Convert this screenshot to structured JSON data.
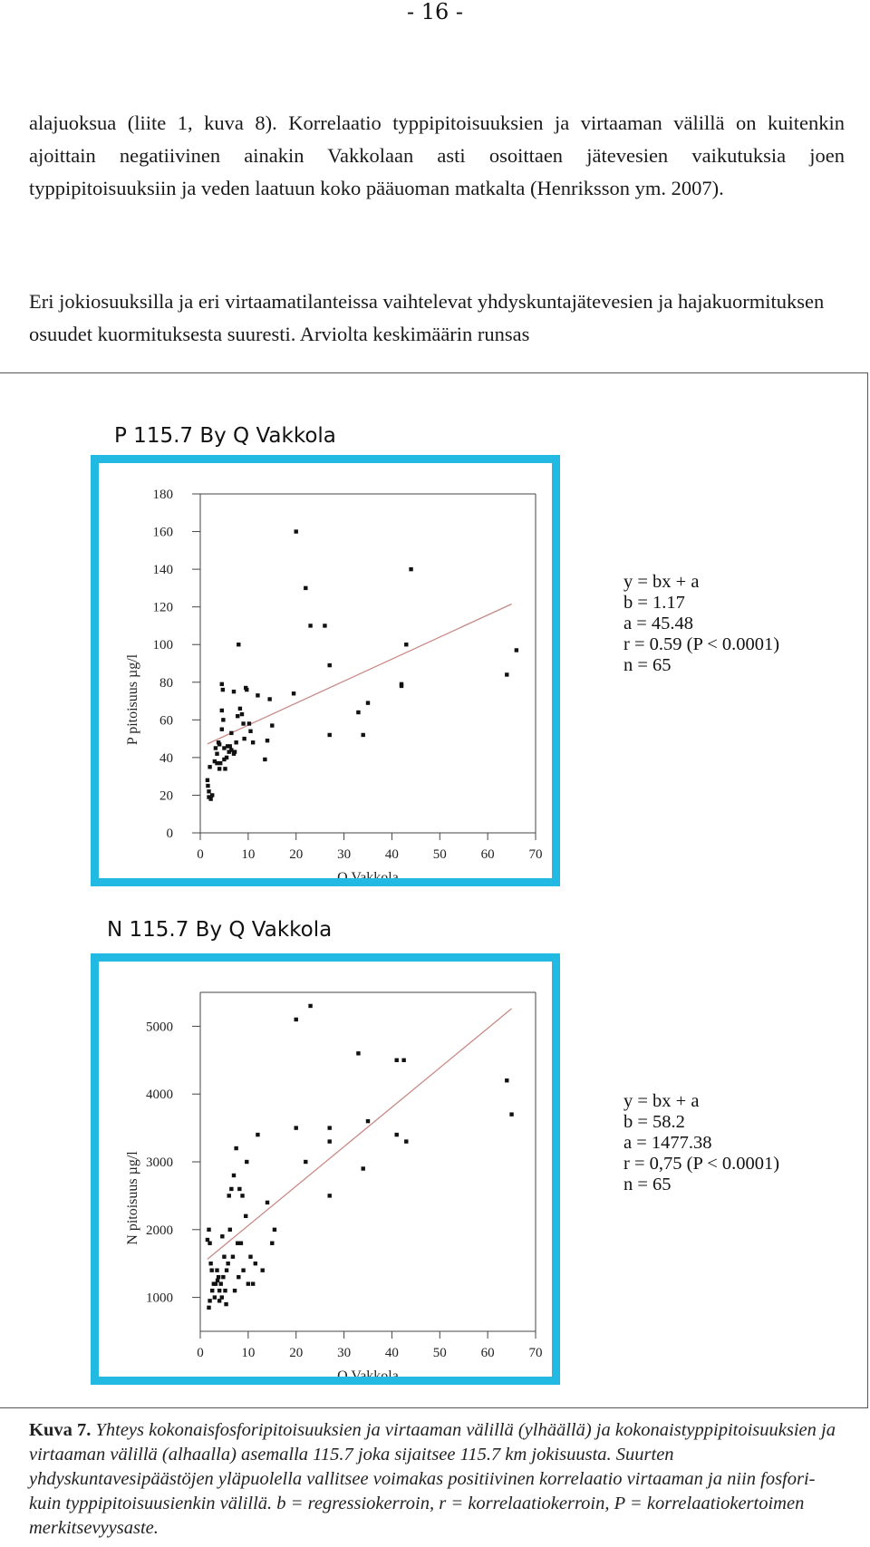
{
  "page": {
    "page_number": "- 16 -",
    "paragraphs": [
      "alajuoksua (liite 1, kuva 8). Korrelaatio typpipitoisuuksien ja virtaaman välillä on kuitenkin ajoittain negatiivinen ainakin Vakkolaan asti osoittaen jätevesien vaikutuksia joen typpipitoisuuksiin ja veden laatuun koko pääuoman matkalta (Henriksson ym. 2007).",
      "Eri jokiosuuksilla ja eri virtaamatilanteissa vaihtelevat yhdyskuntajätevesien ja hajakuormituksen osuudet kuormituksesta suuresti. Arviolta keskimäärin runsas"
    ],
    "caption_label": "Kuva 7.",
    "caption_text": "Yhteys kokonaisfosforipitoisuuksien ja virtaaman välillä (ylhäällä) ja kokonaistyppipitoisuuksien ja virtaaman välillä (alhaalla) asemalla 115.7 joka sijaitsee 115.7 km jokisuusta. Suurten yhdyskuntavesipäästöjen yläpuolella vallitsee voimakas positiivinen korrelaatio virtaaman ja niin fosfori- kuin typpipitoisuusienkin välillä. b = regressiokerroin, r = korrelaatiokerroin, P = korrelaatiokertoimen merkitsevyysaste."
  },
  "colors": {
    "frame": "#22b9e3",
    "regression_line": "#c98a86",
    "points": "#111111"
  },
  "chart_data": [
    {
      "type": "scatter",
      "title": "P 115.7 By Q Vakkola",
      "xlabel": "Q Vakkola",
      "ylabel": "P pitoisuus µg/l",
      "xlim": [
        0,
        70
      ],
      "ylim": [
        0,
        180
      ],
      "xticks": [
        0,
        10,
        20,
        30,
        40,
        50,
        60,
        70
      ],
      "yticks": [
        0,
        20,
        40,
        60,
        80,
        100,
        120,
        140,
        160,
        180
      ],
      "regression": {
        "b": 1.17,
        "a": 45.48,
        "x_range": [
          1.5,
          65
        ]
      },
      "stats": [
        "y = bx + a",
        "b = 1.17",
        "a = 45.48",
        "r = 0.59 (P < 0.0001)",
        "n = 65"
      ],
      "points": [
        [
          1.5,
          28
        ],
        [
          1.6,
          25
        ],
        [
          1.8,
          22
        ],
        [
          1.8,
          19
        ],
        [
          2,
          35
        ],
        [
          2.2,
          18
        ],
        [
          2.5,
          20
        ],
        [
          3,
          38
        ],
        [
          3.2,
          45
        ],
        [
          3.5,
          42
        ],
        [
          3.5,
          37
        ],
        [
          4,
          34
        ],
        [
          4,
          47
        ],
        [
          4.2,
          37
        ],
        [
          4.5,
          55
        ],
        [
          4.8,
          60
        ],
        [
          4.5,
          65
        ],
        [
          5,
          45
        ],
        [
          5,
          39
        ],
        [
          5.2,
          34
        ],
        [
          5.5,
          40
        ],
        [
          5.7,
          46
        ],
        [
          6,
          43
        ],
        [
          6.2,
          46
        ],
        [
          6.5,
          44
        ],
        [
          6.5,
          53
        ],
        [
          7,
          42
        ],
        [
          7.5,
          48
        ],
        [
          7.8,
          62
        ],
        [
          8,
          100
        ],
        [
          8.3,
          66
        ],
        [
          8.7,
          63
        ],
        [
          9,
          58
        ],
        [
          9.2,
          50
        ],
        [
          9.5,
          77
        ],
        [
          9.7,
          76
        ],
        [
          4.5,
          79
        ],
        [
          4.7,
          76
        ],
        [
          7,
          75
        ],
        [
          10.5,
          54
        ],
        [
          11,
          48
        ],
        [
          12,
          73
        ],
        [
          13.5,
          39
        ],
        [
          14,
          49
        ],
        [
          14.5,
          71
        ],
        [
          15,
          57
        ],
        [
          19.5,
          74
        ],
        [
          20,
          160
        ],
        [
          22,
          130
        ],
        [
          23,
          110
        ],
        [
          26,
          110
        ],
        [
          27,
          89
        ],
        [
          27,
          52
        ],
        [
          33,
          64
        ],
        [
          34,
          52
        ],
        [
          35,
          69
        ],
        [
          42,
          79
        ],
        [
          42,
          78
        ],
        [
          43,
          100
        ],
        [
          44,
          140
        ],
        [
          64,
          84
        ],
        [
          66,
          97
        ],
        [
          7.2,
          43
        ],
        [
          3.8,
          48
        ],
        [
          10.2,
          58
        ]
      ]
    },
    {
      "type": "scatter",
      "title": "N 115.7 By Q Vakkola",
      "xlabel": "Q Vakkola",
      "ylabel": "N pitoisuus µg/l",
      "xlim": [
        0,
        70
      ],
      "ylim": [
        500,
        5500
      ],
      "xticks": [
        0,
        10,
        20,
        30,
        40,
        50,
        60,
        70
      ],
      "yticks": [
        1000,
        2000,
        3000,
        4000,
        5000
      ],
      "regression": {
        "b": 58.2,
        "a": 1477.38,
        "x_range": [
          1.5,
          65
        ]
      },
      "stats": [
        "y = bx + a",
        "b = 58.2",
        "a = 1477.38",
        "r = 0,75 (P < 0.0001)",
        "n = 65"
      ],
      "points": [
        [
          1.5,
          1850
        ],
        [
          1.8,
          2000
        ],
        [
          2,
          1800
        ],
        [
          1.8,
          850
        ],
        [
          2,
          950
        ],
        [
          2.2,
          1500
        ],
        [
          2.5,
          1100
        ],
        [
          2.8,
          1200
        ],
        [
          3,
          1000
        ],
        [
          3.2,
          1200
        ],
        [
          3.5,
          1400
        ],
        [
          3.8,
          1300
        ],
        [
          4,
          1100
        ],
        [
          4,
          950
        ],
        [
          4.3,
          1200
        ],
        [
          4.5,
          1000
        ],
        [
          4.8,
          1300
        ],
        [
          5,
          1600
        ],
        [
          5.2,
          1100
        ],
        [
          5.5,
          1400
        ],
        [
          5.8,
          1500
        ],
        [
          6,
          2500
        ],
        [
          6.2,
          2000
        ],
        [
          6.5,
          2600
        ],
        [
          6.8,
          1600
        ],
        [
          7,
          2800
        ],
        [
          7.2,
          1100
        ],
        [
          7.5,
          3200
        ],
        [
          7.8,
          1800
        ],
        [
          8,
          1300
        ],
        [
          8.2,
          2600
        ],
        [
          8.5,
          1800
        ],
        [
          8.8,
          2500
        ],
        [
          9,
          1400
        ],
        [
          9.5,
          2200
        ],
        [
          9.7,
          3000
        ],
        [
          10,
          1200
        ],
        [
          10.5,
          1600
        ],
        [
          11,
          1200
        ],
        [
          11.5,
          1500
        ],
        [
          12,
          3400
        ],
        [
          13,
          1400
        ],
        [
          14,
          2400
        ],
        [
          15,
          1800
        ],
        [
          15.5,
          2000
        ],
        [
          20,
          5100
        ],
        [
          20,
          3500
        ],
        [
          22,
          3000
        ],
        [
          23,
          5300
        ],
        [
          27,
          3500
        ],
        [
          27,
          3300
        ],
        [
          27,
          2500
        ],
        [
          33,
          4600
        ],
        [
          34,
          2900
        ],
        [
          35,
          3600
        ],
        [
          41,
          4500
        ],
        [
          41,
          3400
        ],
        [
          42.5,
          4500
        ],
        [
          43,
          3300
        ],
        [
          64,
          4200
        ],
        [
          65,
          3700
        ],
        [
          3.6,
          1250
        ],
        [
          5.4,
          900
        ],
        [
          4.6,
          1900
        ],
        [
          2.4,
          1400
        ]
      ]
    }
  ]
}
